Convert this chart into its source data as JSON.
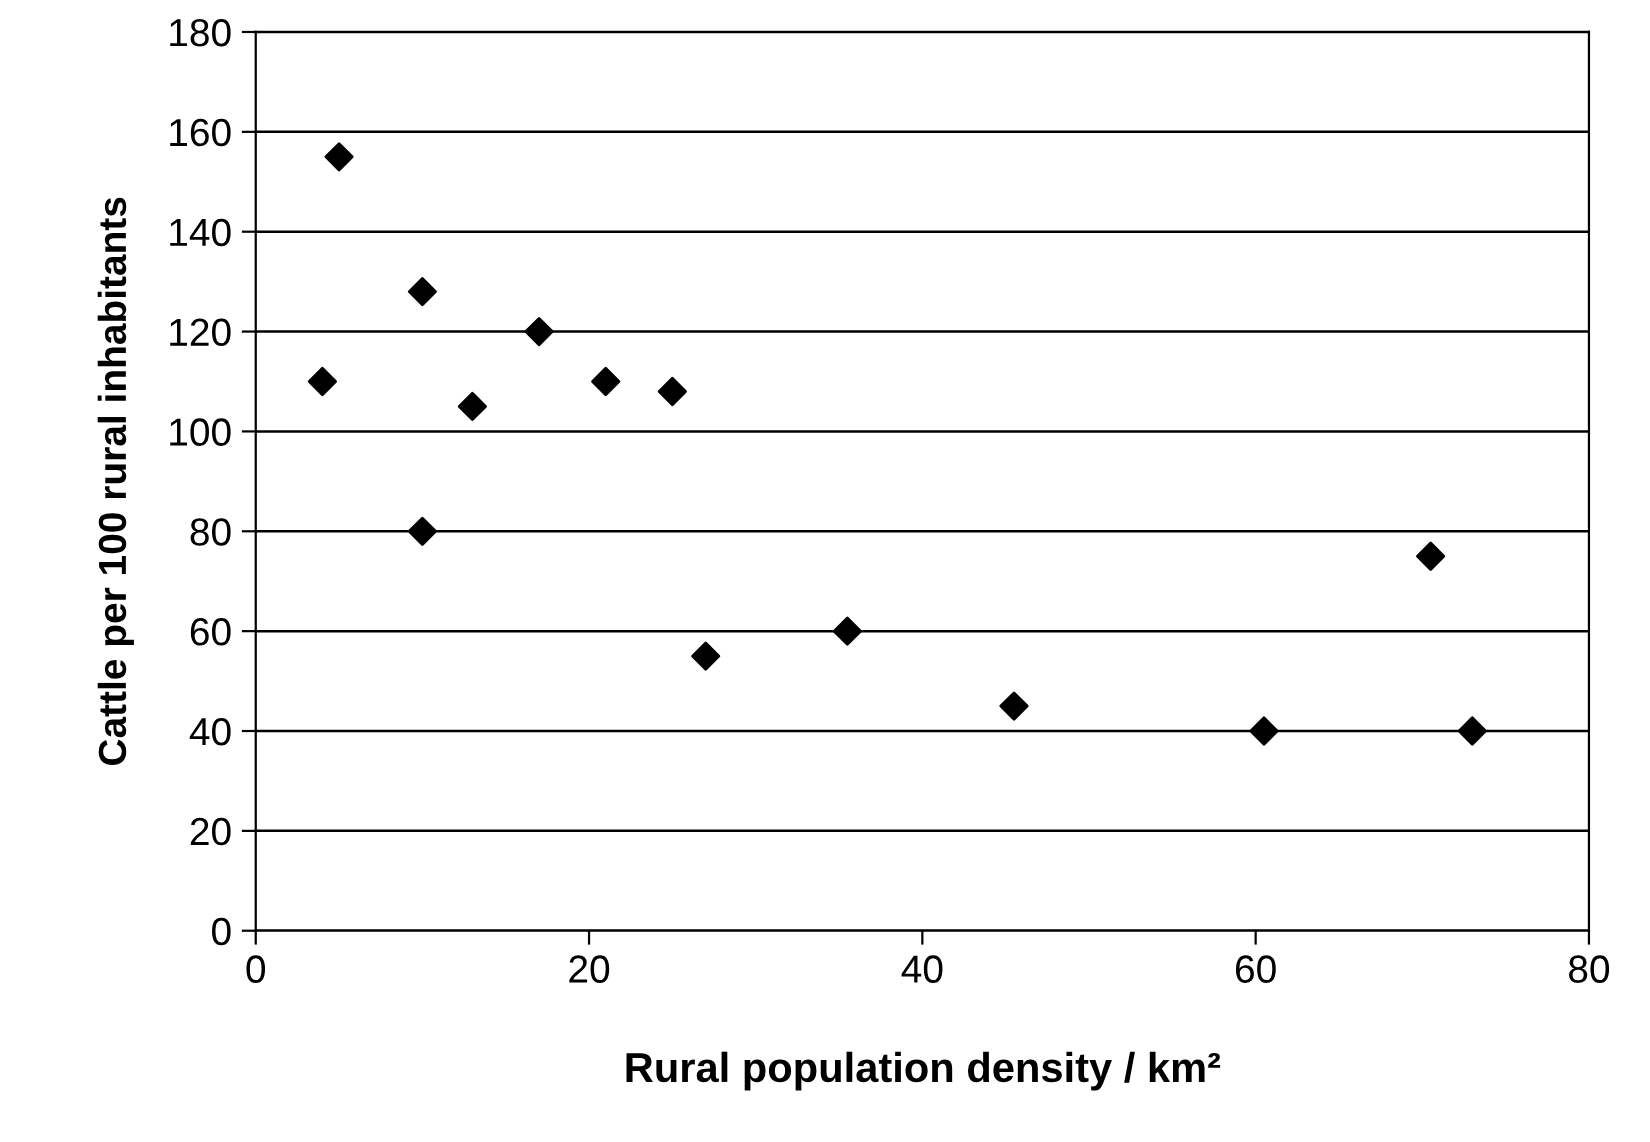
{
  "chart_data": {
    "type": "scatter",
    "xlabel": "Rural population density / km²",
    "ylabel": "Cattle per 100 rural inhabitants",
    "x": [
      4,
      5,
      10,
      10,
      13,
      17,
      21,
      25,
      27,
      35.5,
      45.5,
      60.5,
      70.5,
      73
    ],
    "values": [
      110,
      155,
      128,
      80,
      105,
      120,
      110,
      108,
      55,
      60,
      45,
      40,
      75,
      40
    ],
    "color": "#000000",
    "marker": "diamond",
    "grid": "y",
    "legend": false,
    "xlim": [
      0,
      80
    ],
    "xticks": [
      0,
      20,
      40,
      60,
      80
    ],
    "ylim": [
      0,
      180
    ],
    "yticks": [
      0,
      20,
      40,
      60,
      80,
      100,
      120,
      140,
      160,
      180
    ]
  }
}
